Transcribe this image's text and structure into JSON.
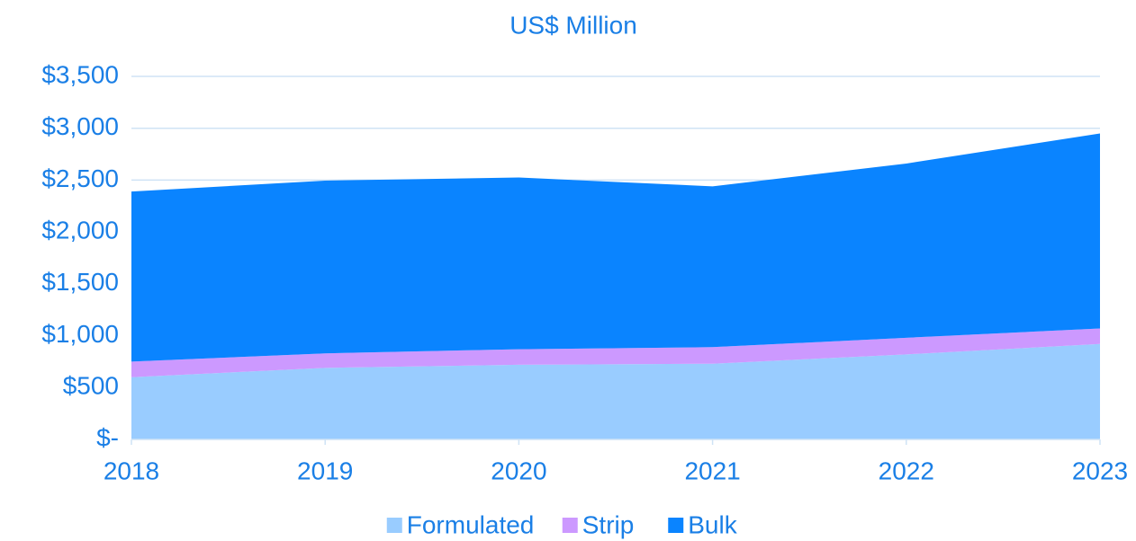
{
  "chart_data": {
    "type": "stacked_area",
    "title": "US$ Million",
    "categories": [
      "2018",
      "2019",
      "2020",
      "2021",
      "2022",
      "2023"
    ],
    "series": [
      {
        "name": "Formulated",
        "color": "#99ccff",
        "values": [
          600,
          690,
          720,
          730,
          820,
          920
        ]
      },
      {
        "name": "Strip",
        "color": "#cc99ff",
        "values": [
          150,
          140,
          150,
          160,
          160,
          150
        ]
      },
      {
        "name": "Bulk",
        "color": "#0a84ff",
        "values": [
          1640,
          1665,
          1655,
          1550,
          1680,
          1880
        ]
      }
    ],
    "ylim": [
      0,
      3500
    ],
    "yticks": [
      {
        "value": 0,
        "label": "$-"
      },
      {
        "value": 500,
        "label": "$500"
      },
      {
        "value": 1000,
        "label": "$1,000"
      },
      {
        "value": 1500,
        "label": "$1,500"
      },
      {
        "value": 2000,
        "label": "$2,000"
      },
      {
        "value": 2500,
        "label": "$2,500"
      },
      {
        "value": 3000,
        "label": "$3,000"
      },
      {
        "value": 3500,
        "label": "$3,500"
      }
    ],
    "grid": true,
    "legend": "bottom"
  }
}
